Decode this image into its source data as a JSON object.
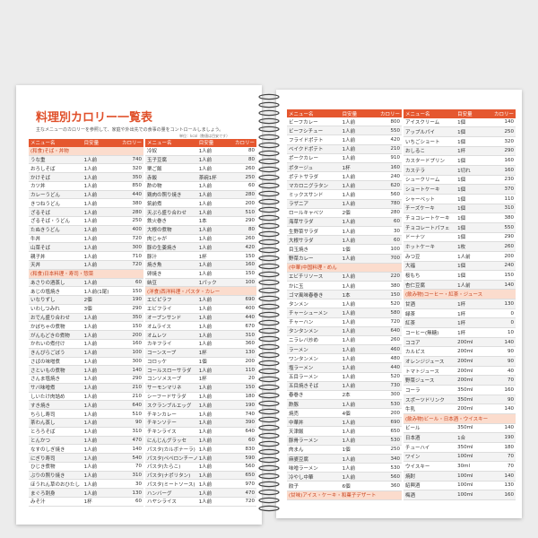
{
  "pages": [
    {
      "title": "料理別カロリー一覧表",
      "note": "主なメニューのカロリーを参照して、家庭や外出先での食事の量をコントロールしましょう。",
      "unit": "単位：kcal（数値は目安です）",
      "tables": [
        {
          "headers": [
            "メニュー名",
            "目安量",
            "カロリー"
          ],
          "rows": [
            [
              "(和食)そば・丼物"
            ],
            [
              "うな重",
              "1人前",
              "740"
            ],
            [
              "おろしそば",
              "1人前",
              "320"
            ],
            [
              "かけそば",
              "1人前",
              "350"
            ],
            [
              "カツ丼",
              "1人前",
              "850"
            ],
            [
              "カレーうどん",
              "1人前",
              "440"
            ],
            [
              "きつねうどん",
              "1人前",
              "380"
            ],
            [
              "ざるそば",
              "1人前",
              "280"
            ],
            [
              "ざるそば・うどん",
              "1人前",
              "250"
            ],
            [
              "たぬきうどん",
              "1人前",
              "400"
            ],
            [
              "牛丼",
              "1人前",
              "720"
            ],
            [
              "山菜そば",
              "1人前",
              "300"
            ],
            [
              "親子丼",
              "1人前",
              "710"
            ],
            [
              "天丼",
              "1人前",
              "720"
            ],
            [
              "(和食)日本料理・寿司・惣菜"
            ],
            [
              "あさりの酒蒸し",
              "1人前",
              "60"
            ],
            [
              "あじの塩焼き",
              "1人前(1尾)",
              "150"
            ],
            [
              "いなりずし",
              "2個",
              "190"
            ],
            [
              "いわしつみれ",
              "3個",
              "290"
            ],
            [
              "おでん盛り合わせ",
              "1人前",
              "350"
            ],
            [
              "かぼちゃの煮物",
              "1人前",
              "150"
            ],
            [
              "がんもどきの煮物",
              "1人前",
              "200"
            ],
            [
              "かれいの煮付け",
              "1人前",
              "160"
            ],
            [
              "きんぴらごぼう",
              "1人前",
              "100"
            ],
            [
              "さばの味噌煮",
              "1人前",
              "300"
            ],
            [
              "さといもの煮物",
              "1人前",
              "140"
            ],
            [
              "さんま塩焼き",
              "1人前",
              "290"
            ],
            [
              "サバ味噌煮",
              "1人前",
              "210"
            ],
            [
              "しいたけ肉詰め",
              "1人前",
              "210"
            ],
            [
              "すき焼き",
              "1人前",
              "640"
            ],
            [
              "ちらし寿司",
              "1人前",
              "510"
            ],
            [
              "茶わん蒸し",
              "1人前",
              "90"
            ],
            [
              "とろろそば",
              "1人前",
              "310"
            ],
            [
              "とんかつ",
              "1人前",
              "470"
            ],
            [
              "なすのしぎ焼き",
              "1人前",
              "140"
            ],
            [
              "にぎり寿司",
              "1人前",
              "540"
            ],
            [
              "ひじき煮物",
              "1人前",
              "70"
            ],
            [
              "ぶりの照り焼き",
              "1人前",
              "310"
            ],
            [
              "ほうれん草のおひたし",
              "1人前",
              "30"
            ],
            [
              "まぐろ刺身",
              "1人前",
              "130"
            ],
            [
              "みそ汁",
              "1杯",
              "60"
            ]
          ]
        },
        {
          "headers": [
            "メニュー名",
            "目安量",
            "カロリー"
          ],
          "rows": [
            [
              "冷奴",
              "1人前",
              "80"
            ],
            [
              "玉子豆腐",
              "1人前",
              "80"
            ],
            [
              "栗ご飯",
              "1人前",
              "260"
            ],
            [
              "赤飯",
              "茶碗1杯",
              "250"
            ],
            [
              "酢の物",
              "1人前",
              "60"
            ],
            [
              "鶏肉の照り焼き",
              "1人前",
              "280"
            ],
            [
              "筑前煮",
              "1人前",
              "200"
            ],
            [
              "天ぷら盛り合わせ",
              "1人前",
              "510"
            ],
            [
              "鉄火巻き",
              "1本",
              "290"
            ],
            [
              "大根の煮物",
              "1人前",
              "80"
            ],
            [
              "肉じゃが",
              "1人前",
              "260"
            ],
            [
              "豚の生姜焼き",
              "1人前",
              "420"
            ],
            [
              "豚汁",
              "1杯",
              "150"
            ],
            [
              "焼き魚",
              "1人前",
              "160"
            ],
            [
              "卵焼き",
              "1人前",
              "150"
            ],
            [
              "納豆",
              "1パック",
              "100"
            ],
            [
              "(洋食)西洋料理・パスタ・カレー"
            ],
            [
              "エビピラフ",
              "1人前",
              "690"
            ],
            [
              "エビフライ",
              "1人前",
              "400"
            ],
            [
              "オープンサンド",
              "1人前",
              "440"
            ],
            [
              "オムライス",
              "1人前",
              "670"
            ],
            [
              "オムレツ",
              "1人前",
              "310"
            ],
            [
              "カキフライ",
              "1人前",
              "360"
            ],
            [
              "コーンスープ",
              "1杯",
              "130"
            ],
            [
              "コロッケ",
              "1個",
              "200"
            ],
            [
              "コールスローサラダ",
              "1人前",
              "110"
            ],
            [
              "コンソメスープ",
              "1杯",
              "20"
            ],
            [
              "サーモンマリネ",
              "1人前",
              "150"
            ],
            [
              "シーフードサラダ",
              "1人前",
              "180"
            ],
            [
              "スクランブルエッグ",
              "1人前",
              "190"
            ],
            [
              "チキンカレー",
              "1人前",
              "740"
            ],
            [
              "チキンソテー",
              "1人前",
              "390"
            ],
            [
              "チキンライス",
              "1人前",
              "640"
            ],
            [
              "にんじんグラッセ",
              "1人前",
              "60"
            ],
            [
              "パスタ(カルボナーラ)",
              "1人前",
              "830"
            ],
            [
              "パスタ(ペペロンチーノ)",
              "1人前",
              "590"
            ],
            [
              "パスタ(たらこ)",
              "1人前",
              "560"
            ],
            [
              "パスタ(ナポリタン)",
              "1人前",
              "650"
            ],
            [
              "パスタ(ミートソース)",
              "1人前",
              "970"
            ],
            [
              "ハンバーグ",
              "1人前",
              "470"
            ],
            [
              "ハヤシライス",
              "1人前",
              "720"
            ]
          ]
        }
      ]
    },
    {
      "tables": [
        {
          "headers": [
            "メニュー名",
            "目安量",
            "カロリー"
          ],
          "rows": [
            [
              "ビーフカレー",
              "1人前",
              "800"
            ],
            [
              "ビーフシチュー",
              "1人前",
              "550"
            ],
            [
              "フライドポテト",
              "1人前",
              "420"
            ],
            [
              "ベイクドポテト",
              "1人前",
              "210"
            ],
            [
              "ポークカレー",
              "1人前",
              "910"
            ],
            [
              "ポタージュ",
              "1杯",
              "160"
            ],
            [
              "ポテトサラダ",
              "1人前",
              "240"
            ],
            [
              "マカロニグラタン",
              "1人前",
              "620"
            ],
            [
              "ミックスサンド",
              "1人前",
              "560"
            ],
            [
              "ラザニア",
              "1人前",
              "780"
            ],
            [
              "ロールキャベツ",
              "2個",
              "280"
            ],
            [
              "海草サラダ",
              "1人前",
              "60"
            ],
            [
              "生野菜サラダ",
              "1人前",
              "30"
            ],
            [
              "大根サラダ",
              "1人前",
              "60"
            ],
            [
              "目玉焼き",
              "1個",
              "100"
            ],
            [
              "野菜カレー",
              "1人前",
              "700"
            ],
            [
              "(中華)中国料理・めん"
            ],
            [
              "エビチリソース",
              "1人前",
              "220"
            ],
            [
              "かに玉",
              "1人前",
              "380"
            ],
            [
              "ゴマ風味春巻き",
              "1本",
              "150"
            ],
            [
              "タンメン",
              "1人前",
              "520"
            ],
            [
              "チャーシューメン",
              "1人前",
              "580"
            ],
            [
              "チャーハン",
              "1人前",
              "720"
            ],
            [
              "タンタンメン",
              "1人前",
              "640"
            ],
            [
              "ニラレバ炒め",
              "1人前",
              "260"
            ],
            [
              "ラーメン",
              "1人前",
              "460"
            ],
            [
              "ワンタンメン",
              "1人前",
              "480"
            ],
            [
              "塩ラーメン",
              "1人前",
              "440"
            ],
            [
              "五目ラーメン",
              "1人前",
              "520"
            ],
            [
              "五目焼きそば",
              "1人前",
              "730"
            ],
            [
              "春巻き",
              "2本",
              "300"
            ],
            [
              "酢豚",
              "1人前",
              "530"
            ],
            [
              "焼売",
              "4個",
              "200"
            ],
            [
              "中華丼",
              "1人前",
              "690"
            ],
            [
              "天津飯",
              "1人前",
              "650"
            ],
            [
              "豚骨ラーメン",
              "1人前",
              "530"
            ],
            [
              "肉まん",
              "1個",
              "250"
            ],
            [
              "麻婆豆腐",
              "1人前",
              "340"
            ],
            [
              "味噌ラーメン",
              "1人前",
              "530"
            ],
            [
              "冷やし中華",
              "1人前",
              "560"
            ],
            [
              "餃子",
              "6個",
              "360"
            ],
            [
              "(甘味)アイス・ケーキ・和菓子デザート"
            ]
          ]
        },
        {
          "headers": [
            "メニュー名",
            "目安量",
            "カロリー"
          ],
          "rows": [
            [
              "アイスクリーム",
              "1個",
              "140"
            ],
            [
              "アップルパイ",
              "1個",
              "250"
            ],
            [
              "いちごショート",
              "1個",
              "320"
            ],
            [
              "おしるこ",
              "1杯",
              "290"
            ],
            [
              "カスタードプリン",
              "1個",
              "160"
            ],
            [
              "カステラ",
              "1切れ",
              "160"
            ],
            [
              "シュークリーム",
              "1個",
              "230"
            ],
            [
              "ショートケーキ",
              "1個",
              "370"
            ],
            [
              "シャーベット",
              "1個",
              "110"
            ],
            [
              "チーズケーキ",
              "1個",
              "310"
            ],
            [
              "チョコレートケーキ",
              "1個",
              "380"
            ],
            [
              "チョコレートパフェ",
              "1個",
              "550"
            ],
            [
              "ドーナツ",
              "1個",
              "290"
            ],
            [
              "ホットケーキ",
              "1枚",
              "260"
            ],
            [
              "みつ豆",
              "1人前",
              "200"
            ],
            [
              "大福",
              "1個",
              "240"
            ],
            [
              "桜もち",
              "1個",
              "150"
            ],
            [
              "杏仁豆腐",
              "1人前",
              "140"
            ],
            [
              "(飲み物)コーヒー・紅茶・ジュース"
            ],
            [
              "甘酒",
              "1杯",
              "130"
            ],
            [
              "緑茶",
              "1杯",
              "0"
            ],
            [
              "紅茶",
              "1杯",
              "0"
            ],
            [
              "コーヒー(無糖)",
              "1杯",
              "10"
            ],
            [
              "ココア",
              "200ml",
              "140"
            ],
            [
              "カルピス",
              "200ml",
              "90"
            ],
            [
              "オレンジジュース",
              "200ml",
              "90"
            ],
            [
              "トマトジュース",
              "200ml",
              "40"
            ],
            [
              "野菜ジュース",
              "200ml",
              "70"
            ],
            [
              "コーラ",
              "350ml",
              "160"
            ],
            [
              "スポーツドリンク",
              "350ml",
              "90"
            ],
            [
              "牛乳",
              "200ml",
              "140"
            ],
            [
              "(飲み物)ビール・日本酒・ウイスキー"
            ],
            [
              "ビール",
              "350ml",
              "140"
            ],
            [
              "日本酒",
              "1合",
              "190"
            ],
            [
              "チューハイ",
              "350ml",
              "180"
            ],
            [
              "ワイン",
              "100ml",
              "70"
            ],
            [
              "ウイスキー",
              "30ml",
              "70"
            ],
            [
              "焼酎",
              "100ml",
              "140"
            ],
            [
              "紹興酒",
              "100ml",
              "130"
            ],
            [
              "梅酒",
              "100ml",
              "160"
            ]
          ]
        }
      ]
    }
  ]
}
